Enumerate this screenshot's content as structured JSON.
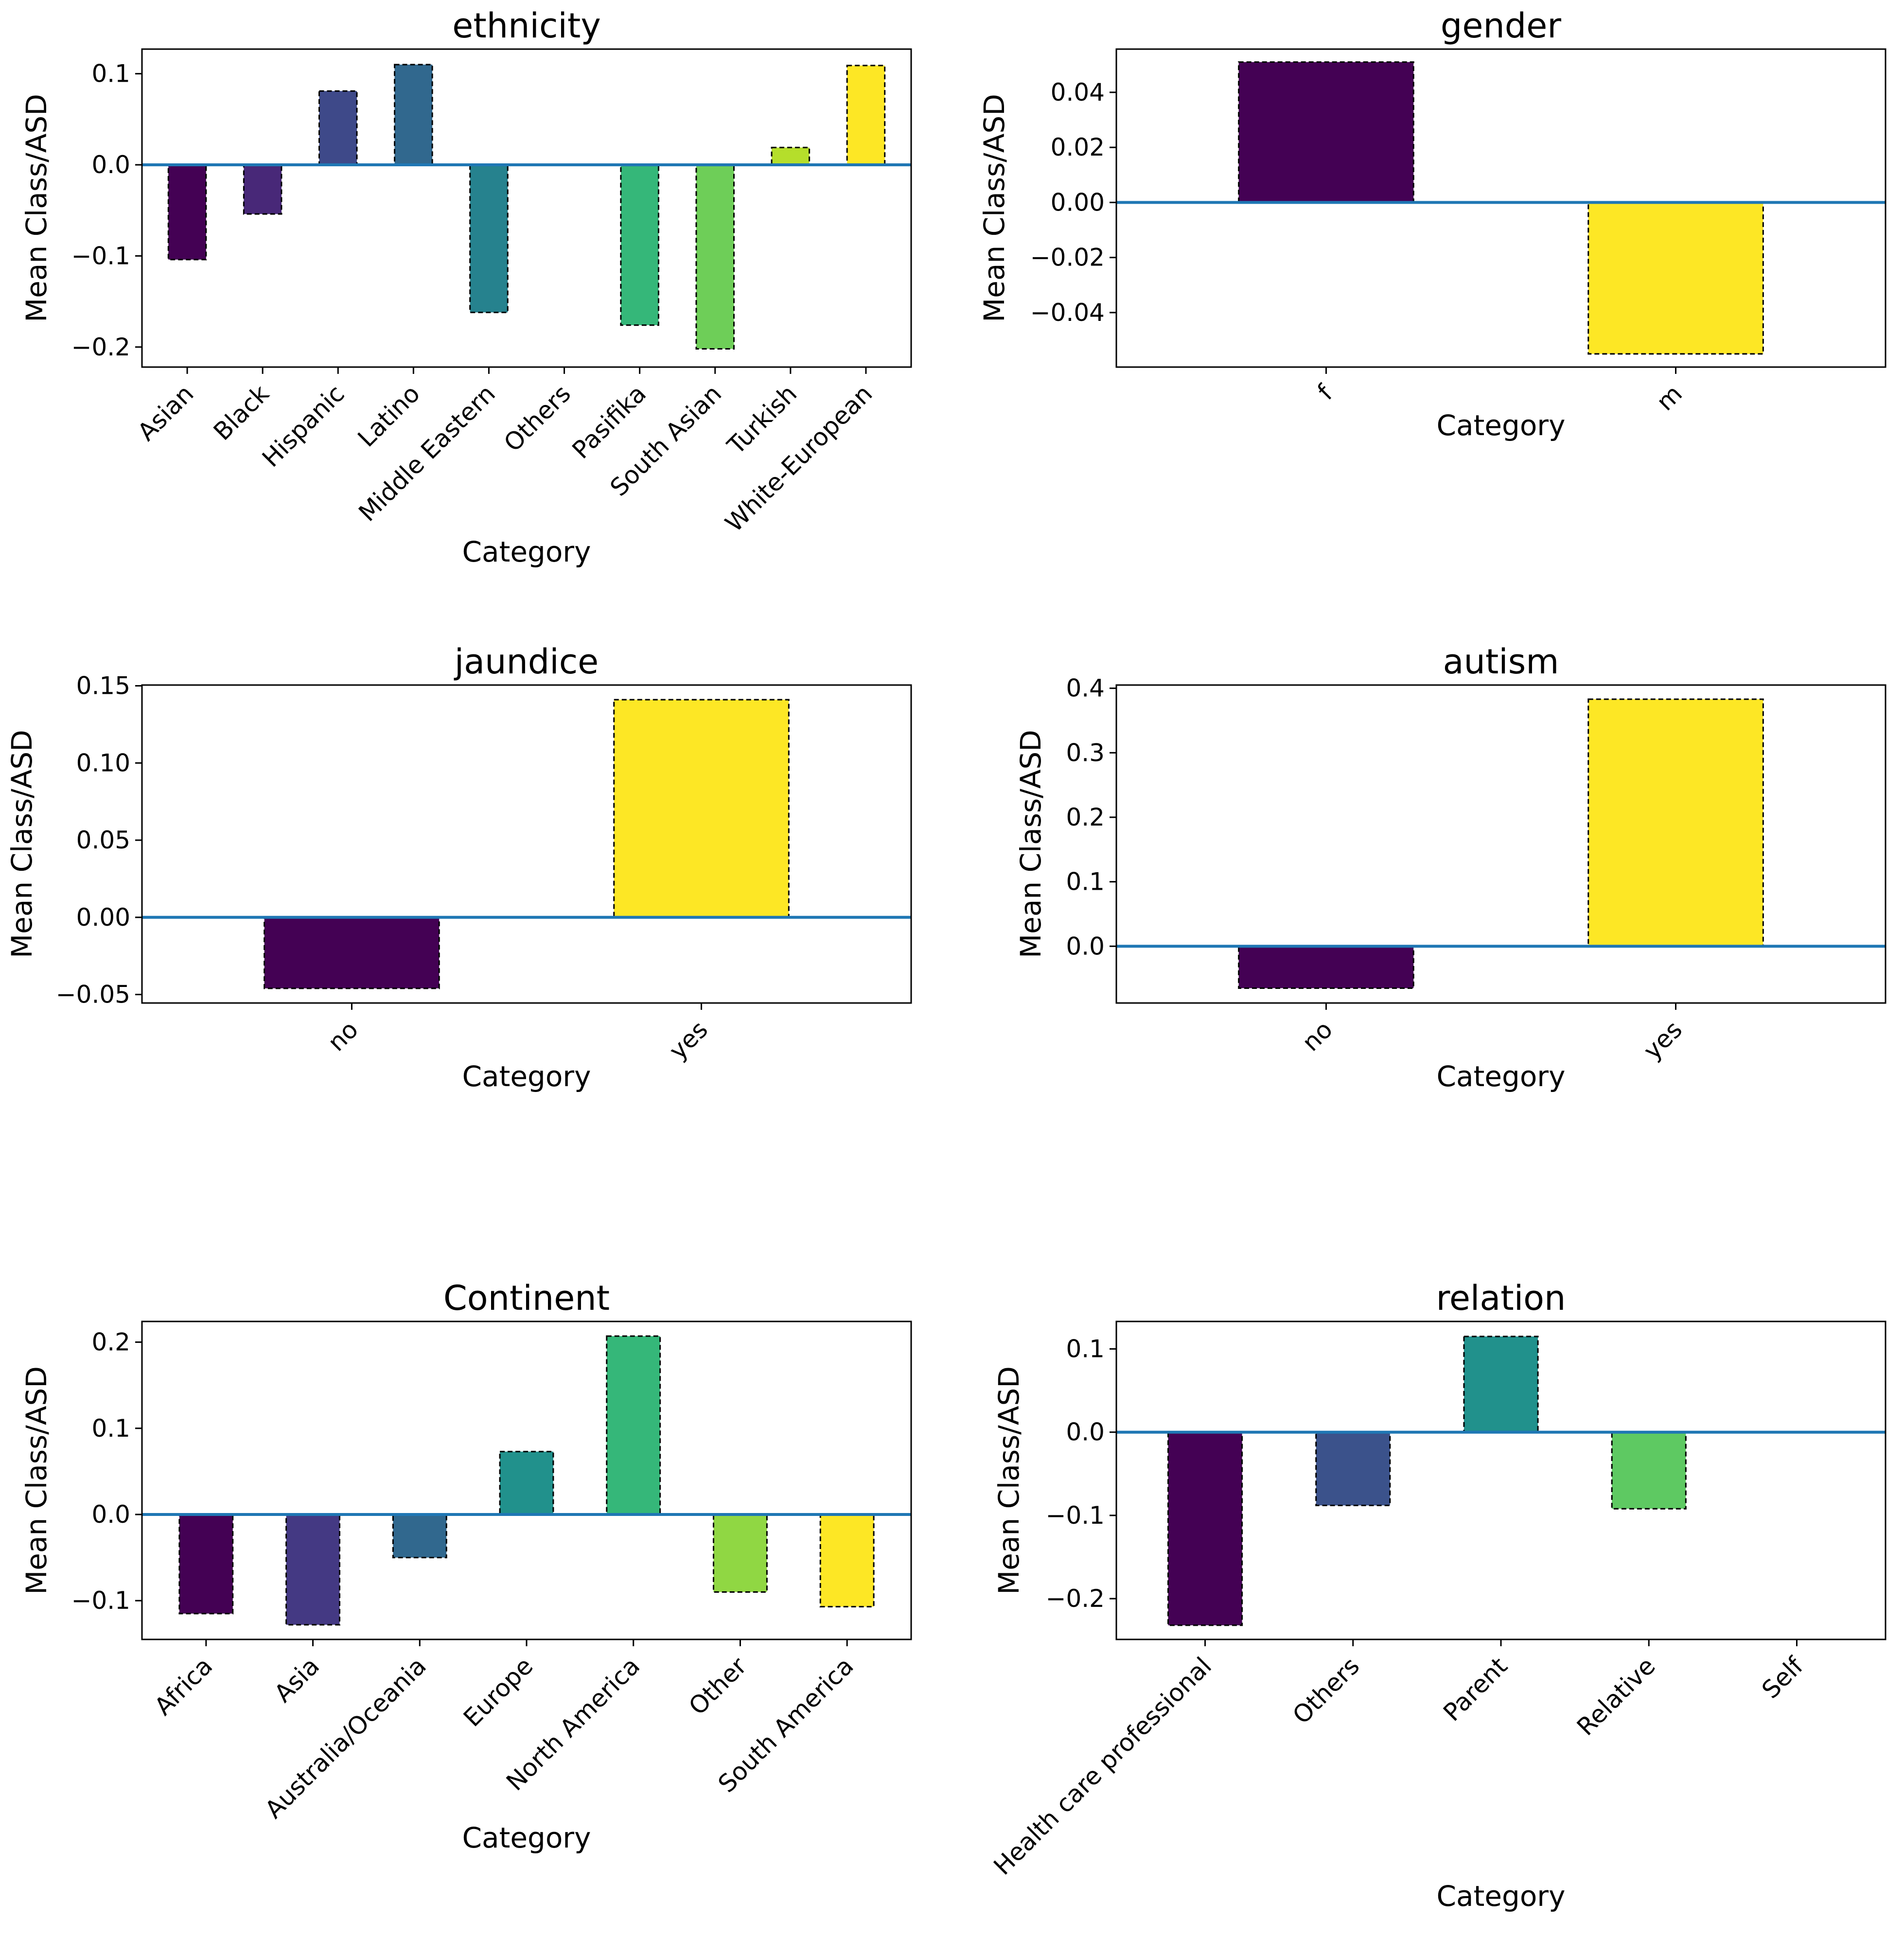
{
  "chart_data": [
    {
      "type": "bar",
      "title": "ethnicity",
      "xlabel": "Category",
      "ylabel": "Mean Class/ASD",
      "categories": [
        "Asian",
        "Black",
        "Hispanic",
        "Latino",
        "Middle Eastern",
        "Others",
        "Pasifika",
        "South Asian",
        "Turkish",
        "White-European"
      ],
      "values": [
        -0.104,
        -0.054,
        0.081,
        0.11,
        -0.162,
        0,
        -0.176,
        -0.202,
        0.019,
        0.109
      ],
      "colors": [
        "#440154",
        "#482878",
        "#3e4989",
        "#31688e",
        "#26828e",
        "#1f9e89",
        "#35b779",
        "#6ece58",
        "#b5de2b",
        "#fde725"
      ],
      "ylim": [
        -0.222,
        0.127
      ],
      "yticks": [
        -0.2,
        -0.1,
        0.0,
        0.1
      ],
      "ytick_labels": [
        "−0.2",
        "−0.1",
        "0.0",
        "0.1"
      ],
      "xtick_rotation": 45,
      "baseline": 0
    },
    {
      "type": "bar",
      "title": "gender",
      "xlabel": "Category",
      "ylabel": "Mean Class/ASD",
      "categories": [
        "f",
        "m"
      ],
      "values": [
        0.051,
        -0.055
      ],
      "colors": [
        "#440154",
        "#fde725"
      ],
      "ylim": [
        -0.0598,
        0.0557
      ],
      "yticks": [
        -0.04,
        -0.02,
        0.0,
        0.02,
        0.04
      ],
      "ytick_labels": [
        "−0.04",
        "−0.02",
        "0.00",
        "0.02",
        "0.04"
      ],
      "xtick_rotation": 45,
      "baseline": 0
    },
    {
      "type": "bar",
      "title": "jaundice",
      "xlabel": "Category",
      "ylabel": "Mean Class/ASD",
      "categories": [
        "no",
        "yes"
      ],
      "values": [
        -0.046,
        0.141
      ],
      "colors": [
        "#440154",
        "#fde725"
      ],
      "ylim": [
        -0.0555,
        0.1505
      ],
      "yticks": [
        -0.05,
        0.0,
        0.05,
        0.1,
        0.15
      ],
      "ytick_labels": [
        "−0.05",
        "0.00",
        "0.05",
        "0.10",
        "0.15"
      ],
      "xtick_rotation": 45,
      "baseline": 0
    },
    {
      "type": "bar",
      "title": "autism",
      "xlabel": "Category",
      "ylabel": "Mean Class/ASD",
      "categories": [
        "no",
        "yes"
      ],
      "values": [
        -0.065,
        0.383
      ],
      "colors": [
        "#440154",
        "#fde725"
      ],
      "ylim": [
        -0.088,
        0.405
      ],
      "yticks": [
        0.0,
        0.1,
        0.2,
        0.3,
        0.4
      ],
      "ytick_labels": [
        "0.0",
        "0.1",
        "0.2",
        "0.3",
        "0.4"
      ],
      "xtick_rotation": 45,
      "baseline": 0
    },
    {
      "type": "bar",
      "title": "Continent",
      "xlabel": "Category",
      "ylabel": "Mean Class/ASD",
      "categories": [
        "Africa",
        "Asia",
        "Australia/Oceania",
        "Europe",
        "North America",
        "Other",
        "South America"
      ],
      "values": [
        -0.115,
        -0.128,
        -0.05,
        0.073,
        0.207,
        -0.09,
        -0.107
      ],
      "colors": [
        "#440154",
        "#443983",
        "#31688e",
        "#21918c",
        "#35b779",
        "#90d743",
        "#fde725"
      ],
      "ylim": [
        -0.145,
        0.224
      ],
      "yticks": [
        -0.1,
        0.0,
        0.1,
        0.2
      ],
      "ytick_labels": [
        "−0.1",
        "0.0",
        "0.1",
        "0.2"
      ],
      "xtick_rotation": 45,
      "baseline": 0
    },
    {
      "type": "bar",
      "title": "relation",
      "xlabel": "Category",
      "ylabel": "Mean Class/ASD",
      "categories": [
        "Health care professional",
        "Others",
        "Parent",
        "Relative",
        "Self"
      ],
      "values": [
        -0.232,
        -0.088,
        0.115,
        -0.092,
        0
      ],
      "colors": [
        "#440154",
        "#3b528b",
        "#21918c",
        "#5ec962",
        "#fde725"
      ],
      "ylim": [
        -0.249,
        0.133
      ],
      "yticks": [
        -0.2,
        -0.1,
        0.0,
        0.1
      ],
      "ytick_labels": [
        "−0.2",
        "−0.1",
        "0.0",
        "0.1"
      ],
      "xtick_rotation": 45,
      "baseline": 0
    }
  ]
}
